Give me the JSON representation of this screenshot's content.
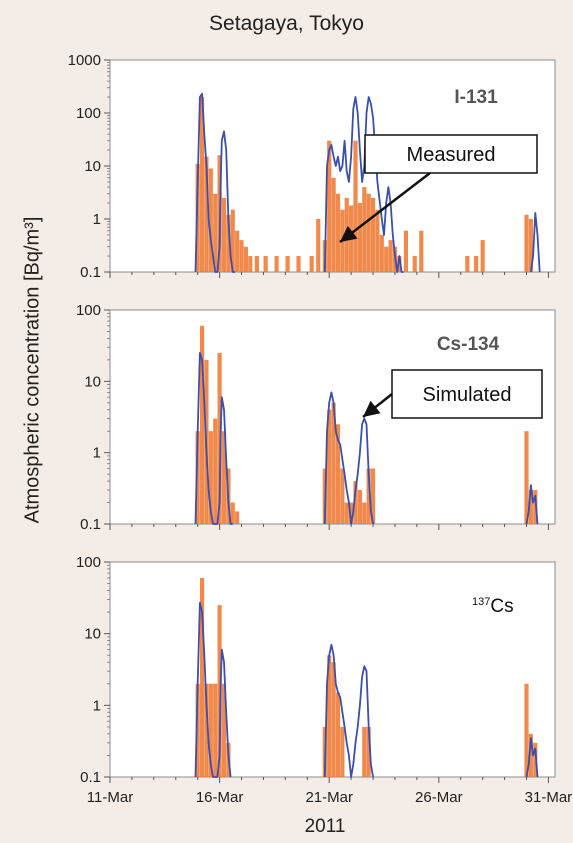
{
  "chart_data": [
    {
      "type": "bar+line",
      "isotope_label": "I-131",
      "title": "Setagaya, Tokyo",
      "ylabel": "Atmospheric concentration  [Bq/m³]",
      "xlabel": "2011",
      "yscale": "log",
      "ylim": [
        0.1,
        1000
      ],
      "yticks": [
        "0.1",
        "1",
        "10",
        "100",
        "1000"
      ],
      "xlim": [
        11,
        31.3
      ],
      "annotation": "Measured",
      "series": [
        {
          "name": "Measured",
          "kind": "bar",
          "color": "#f07f3c",
          "x": [
            15.0,
            15.2,
            15.4,
            15.6,
            15.8,
            16.0,
            16.2,
            16.4,
            16.6,
            16.8,
            17.0,
            17.2,
            17.4,
            17.7,
            18.1,
            18.6,
            19.1,
            19.6,
            20.2,
            20.5,
            20.8,
            21.0,
            21.2,
            21.4,
            21.6,
            21.8,
            22.0,
            22.2,
            22.4,
            22.6,
            22.8,
            23.0,
            23.2,
            23.4,
            23.6,
            23.8,
            24.0,
            24.2,
            24.5,
            24.9,
            25.2,
            27.3,
            27.7,
            28.0,
            30.0,
            30.2
          ],
          "values": [
            11,
            200,
            15,
            9,
            3,
            16,
            2.5,
            1.2,
            1.5,
            0.6,
            0.4,
            0.3,
            0.2,
            0.2,
            0.2,
            0.2,
            0.2,
            0.2,
            0.2,
            1,
            0.4,
            30,
            6,
            3,
            1.5,
            2.5,
            1.8,
            30,
            2,
            4,
            3,
            2.5,
            1.5,
            0.5,
            0.3,
            0.4,
            0.3,
            0.2,
            0.6,
            0.2,
            0.6,
            0.2,
            0.2,
            0.4,
            1.2,
            1.0
          ]
        },
        {
          "name": "Simulated",
          "kind": "line",
          "color": "#3a4fb0",
          "x": [
            14.9,
            15.0,
            15.1,
            15.2,
            15.3,
            15.4,
            15.5,
            15.6,
            15.7,
            15.8,
            15.9,
            16.0,
            16.05,
            16.1,
            16.2,
            16.3,
            16.4,
            16.5,
            16.6,
            16.7,
            20.8,
            20.9,
            21.0,
            21.1,
            21.2,
            21.3,
            21.4,
            21.5,
            21.6,
            21.7,
            21.8,
            21.9,
            22.0,
            22.1,
            22.2,
            22.3,
            22.4,
            22.5,
            22.6,
            22.7,
            22.8,
            22.9,
            23.0,
            23.1,
            23.2,
            23.4,
            23.5,
            23.6,
            23.7,
            23.8,
            23.9,
            24.0,
            24.1,
            24.2,
            24.3,
            24.4,
            30.2,
            30.3,
            30.4,
            30.5,
            30.6
          ],
          "values": [
            0.1,
            5,
            200,
            230,
            40,
            10,
            1,
            0.4,
            0.2,
            0.1,
            0.1,
            0.3,
            5,
            30,
            45,
            20,
            1,
            0.2,
            0.1,
            0.1,
            0.1,
            10,
            20,
            25,
            15,
            10,
            15,
            8,
            10,
            30,
            8,
            5,
            15,
            120,
            200,
            100,
            20,
            5,
            10,
            100,
            200,
            150,
            80,
            20,
            5,
            1,
            0.5,
            2,
            4,
            2,
            0.5,
            0.2,
            0.1,
            0.2,
            0.1,
            0.1,
            0.1,
            0.2,
            1.3,
            0.5,
            0.1
          ]
        }
      ]
    },
    {
      "type": "bar+line",
      "isotope_label": "Cs-134",
      "yscale": "log",
      "ylim": [
        0.1,
        100
      ],
      "yticks": [
        "0.1",
        "1",
        "10",
        "100"
      ],
      "xlim": [
        11,
        31.3
      ],
      "annotation": "Simulated",
      "series": [
        {
          "name": "Measured",
          "kind": "bar",
          "color": "#f07f3c",
          "x": [
            15.0,
            15.2,
            15.4,
            15.6,
            15.8,
            16.0,
            16.2,
            16.4,
            16.6,
            16.8,
            20.8,
            21.0,
            21.2,
            21.4,
            21.6,
            21.8,
            22.0,
            22.2,
            22.4,
            22.6,
            22.8,
            23.0,
            30.0,
            30.2,
            30.4
          ],
          "values": [
            2,
            60,
            20,
            2,
            3,
            25,
            2,
            0.6,
            0.2,
            0.15,
            0.6,
            4,
            5,
            2.5,
            0.6,
            0.2,
            0.2,
            0.4,
            0.3,
            0.2,
            0.6,
            0.6,
            2,
            0.3,
            0.3
          ]
        },
        {
          "name": "Simulated",
          "kind": "line",
          "color": "#3a4fb0",
          "x": [
            14.9,
            15.0,
            15.1,
            15.2,
            15.3,
            15.4,
            15.5,
            15.6,
            15.7,
            15.8,
            15.9,
            16.0,
            16.05,
            16.1,
            16.2,
            16.3,
            16.4,
            16.5,
            16.6,
            20.8,
            20.9,
            21.0,
            21.1,
            21.2,
            21.3,
            21.4,
            21.5,
            21.6,
            21.7,
            21.8,
            21.9,
            22.0,
            22.1,
            22.2,
            22.3,
            22.4,
            22.5,
            22.6,
            22.7,
            22.8,
            22.9,
            23.0,
            30.0,
            30.1,
            30.2,
            30.3,
            30.4,
            30.5
          ],
          "values": [
            0.1,
            2,
            25,
            20,
            5,
            1,
            0.3,
            0.15,
            0.1,
            0.1,
            0.1,
            0.2,
            2,
            6,
            4,
            0.8,
            0.2,
            0.1,
            0.1,
            0.1,
            2,
            5,
            7,
            5,
            2,
            1.5,
            1.3,
            0.8,
            0.5,
            0.3,
            0.2,
            0.1,
            0.15,
            0.3,
            0.5,
            1,
            2.5,
            3,
            2.5,
            0.5,
            0.15,
            0.1,
            0.1,
            0.15,
            0.35,
            0.2,
            0.25,
            0.1
          ]
        }
      ]
    },
    {
      "type": "bar+line",
      "isotope_label": "137Cs",
      "isotope_mass": "137",
      "isotope_symbol": "Cs",
      "yscale": "log",
      "ylim": [
        0.1,
        100
      ],
      "yticks": [
        "0.1",
        "1",
        "10",
        "100"
      ],
      "xlim": [
        11,
        31.3
      ],
      "xticks": [
        "11-Mar",
        "16-Mar",
        "21-Mar",
        "26-Mar",
        "31-Mar"
      ],
      "series": [
        {
          "name": "Measured",
          "kind": "bar",
          "color": "#f07f3c",
          "x": [
            15.0,
            15.2,
            15.4,
            15.6,
            15.8,
            16.0,
            16.2,
            16.4,
            20.8,
            21.0,
            21.2,
            21.4,
            21.6,
            22.6,
            22.8,
            30.0,
            30.2,
            30.4
          ],
          "values": [
            2,
            60,
            2,
            2,
            2,
            25,
            2,
            0.3,
            0.5,
            5,
            4,
            1.5,
            0.5,
            0.5,
            0.5,
            2,
            0.4,
            0.3
          ]
        },
        {
          "name": "Simulated",
          "kind": "line",
          "color": "#3a4fb0",
          "x": [
            14.9,
            15.0,
            15.1,
            15.2,
            15.3,
            15.4,
            15.5,
            15.6,
            15.7,
            15.8,
            15.9,
            16.0,
            16.05,
            16.1,
            16.2,
            16.3,
            16.4,
            16.5,
            20.8,
            20.9,
            21.0,
            21.1,
            21.2,
            21.3,
            21.4,
            21.5,
            21.6,
            21.7,
            21.8,
            21.9,
            22.0,
            22.1,
            22.2,
            22.3,
            22.4,
            22.5,
            22.6,
            22.7,
            22.8,
            22.9,
            23.0,
            30.0,
            30.1,
            30.2,
            30.3,
            30.4,
            30.5
          ],
          "values": [
            0.1,
            2,
            27,
            20,
            5,
            1,
            0.3,
            0.15,
            0.1,
            0.1,
            0.1,
            0.2,
            2,
            6,
            4,
            0.8,
            0.2,
            0.1,
            0.1,
            2,
            5,
            7,
            5,
            2,
            1.5,
            1.3,
            0.8,
            0.5,
            0.3,
            0.2,
            0.1,
            0.15,
            0.3,
            0.5,
            1,
            2.5,
            3.5,
            3,
            0.5,
            0.15,
            0.1,
            0.1,
            0.15,
            0.35,
            0.2,
            0.25,
            0.1
          ]
        }
      ]
    }
  ]
}
